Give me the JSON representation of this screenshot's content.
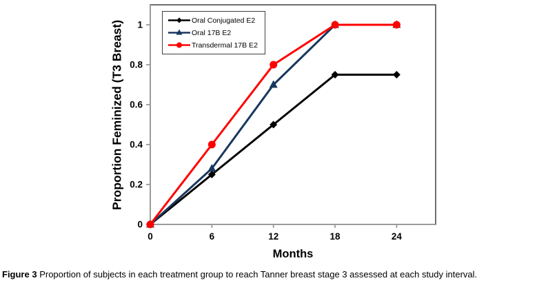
{
  "figure": {
    "caption_label": "Figure 3",
    "caption_text": " Proportion of subjects in each treatment group to reach Tanner breast stage 3 assessed at each study interval."
  },
  "chart_data": {
    "type": "line",
    "title": "",
    "xlabel": "Months",
    "ylabel": "Proportion Feminized (T3 Breast)",
    "x": [
      0,
      6,
      12,
      18,
      24
    ],
    "x_tick_labels": [
      "0",
      "6",
      "12",
      "18",
      "24"
    ],
    "y_ticks": [
      0,
      0.2,
      0.4,
      0.6,
      0.8,
      1
    ],
    "y_tick_labels": [
      "0",
      "0.2",
      "0.4",
      "0.6",
      "0.8",
      "1"
    ],
    "xlim": [
      0,
      27.8
    ],
    "ylim": [
      0,
      1.1
    ],
    "grid": false,
    "legend_position": "top-left-inside",
    "series": [
      {
        "name": "Oral Conjugated E2",
        "color": "#000000",
        "marker": "diamond",
        "values": [
          0,
          0.25,
          0.5,
          0.75,
          0.75
        ]
      },
      {
        "name": "Oral 17B E2",
        "color": "#17375E",
        "marker": "triangle",
        "values": [
          0,
          0.28,
          0.7,
          1,
          1
        ]
      },
      {
        "name": "Transdermal 17B E2",
        "color": "#FF0000",
        "marker": "circle",
        "values": [
          0,
          0.4,
          0.8,
          1,
          1
        ]
      }
    ],
    "colors": {
      "plot_border": "#3f3f3f",
      "axis_line": "#9a9a9a",
      "text": "#000000",
      "background": "#ffffff"
    }
  }
}
